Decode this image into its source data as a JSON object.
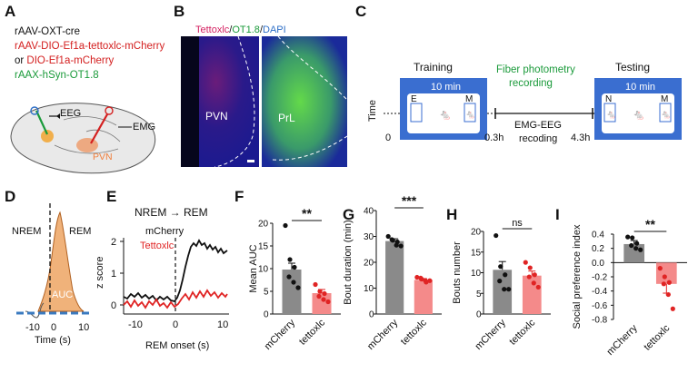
{
  "panel_letters": [
    "A",
    "B",
    "C",
    "D",
    "E",
    "F",
    "G",
    "H",
    "I"
  ],
  "panel_a": {
    "lines": [
      {
        "text": "rAAV-OXT-cre",
        "color": "#111111"
      },
      {
        "text": "rAAV-DIO-Ef1a-tettoxlc-mCherry",
        "color": "#d42020"
      },
      {
        "text": "or ",
        "color": "#111111",
        "extra": "DIO-Ef1a-mCherry",
        "extra_color": "#d42020"
      },
      {
        "text": "rAAX-hSyn-OT1.8",
        "color": "#1a9a3a"
      }
    ],
    "eeg_label": "EEG",
    "emg_label": "EMG",
    "pvn_label": "PVN"
  },
  "panel_b": {
    "title_tettox": "Tettoxlc",
    "title_slash1": "/",
    "title_ot": "OT1.8",
    "title_slash2": "/",
    "title_dapi": "DAPI",
    "pvn_label": "PVN",
    "pl_label": "PrL"
  },
  "panel_c": {
    "training_label": "Training",
    "testing_label": "Testing",
    "duration_label_1": "10 min",
    "duration_label_2": "10 min",
    "fiber_label_1": "Fiber photometry",
    "fiber_label_2": "recording",
    "emg_label_1": "EMG-EEG",
    "emg_label_2": "recoding",
    "time_label": "Time",
    "t0": "0",
    "t1": "0.3h",
    "t2": "4.3h",
    "box_e": "E",
    "box_m1": "M",
    "box_n": "N",
    "box_m2": "M"
  },
  "panel_d": {
    "nrem": "NREM",
    "rem": "REM",
    "auc": "AUC",
    "xlabel": "Time (s)",
    "ticks": [
      "-10",
      "0",
      "10"
    ]
  },
  "panel_e": {
    "title": "NREM → REM",
    "legend_mcherry": "mCherry",
    "legend_tettox": "Tettoxlc",
    "ylabel": "z score",
    "xlabel": "REM onset (s)",
    "yticks": [
      "0",
      "1",
      "2"
    ],
    "xticks": [
      "-10",
      "0",
      "10"
    ]
  },
  "chart_data": [
    {
      "panel": "F",
      "type": "bar",
      "ylabel": "Mean AUC",
      "ylim": [
        0,
        20
      ],
      "yticks": [
        "0",
        "5",
        "10",
        "15",
        "20"
      ],
      "categories": [
        "mCherry",
        "tettoxlc"
      ],
      "values": [
        9.8,
        4.6
      ],
      "errors": [
        1.4,
        0.8
      ],
      "points": [
        [
          19.5,
          12,
          10.3,
          8.2,
          7,
          5.8
        ],
        [
          6.5,
          5,
          4.5,
          3.9,
          3.2,
          2.7
        ]
      ],
      "significance": "**"
    },
    {
      "panel": "G",
      "type": "bar",
      "ylabel": "Bout duration (min)",
      "ylim": [
        0,
        40
      ],
      "yticks": [
        "0",
        "10",
        "20",
        "30",
        "40"
      ],
      "categories": [
        "mCherry",
        "tettoxlc"
      ],
      "values": [
        28.2,
        13.2
      ],
      "errors": [
        0.9,
        0.5
      ],
      "points": [
        [
          30,
          28.5,
          27.9,
          28.8,
          26.6,
          26.3
        ],
        [
          14.2,
          13.5,
          12.3,
          13.9,
          13.0,
          12.9
        ]
      ],
      "significance": "***"
    },
    {
      "panel": "H",
      "type": "bar",
      "ylabel": "Bouts number",
      "ylim": [
        0,
        20
      ],
      "yticks": [
        "0",
        "5",
        "10",
        "15",
        "20"
      ],
      "categories": [
        "mCherry",
        "tettoxlc"
      ],
      "values": [
        10.7,
        9.3
      ],
      "errors": [
        2.0,
        1.1
      ],
      "points": [
        [
          19,
          11.5,
          9.5,
          8,
          6,
          6
        ],
        [
          12.5,
          11.2,
          9.5,
          9,
          7.5,
          6.5
        ]
      ],
      "significance": "ns"
    },
    {
      "panel": "I",
      "type": "bar",
      "ylabel": "Social preference index",
      "ylim": [
        -0.8,
        0.4
      ],
      "yticks": [
        "-0.8",
        "-0.6",
        "-0.4",
        "-0.2",
        "0.0",
        "0.2",
        "0.4"
      ],
      "categories": [
        "mCherry",
        "tettoxlc"
      ],
      "values": [
        0.26,
        -0.3
      ],
      "errors": [
        0.05,
        0.13
      ],
      "points": [
        [
          0.36,
          0.35,
          0.27,
          0.24,
          0.2,
          0.18
        ],
        [
          -0.08,
          -0.2,
          -0.28,
          -0.3,
          -0.45,
          -0.65
        ]
      ],
      "significance": "**"
    }
  ],
  "colors": {
    "gray": "#8a8a8a",
    "pink": "#f48a8a",
    "red": "#e02424",
    "black": "#111111",
    "orange": "#f0b27a",
    "blue": "#2e6fc7",
    "green": "#1a9a3a"
  }
}
